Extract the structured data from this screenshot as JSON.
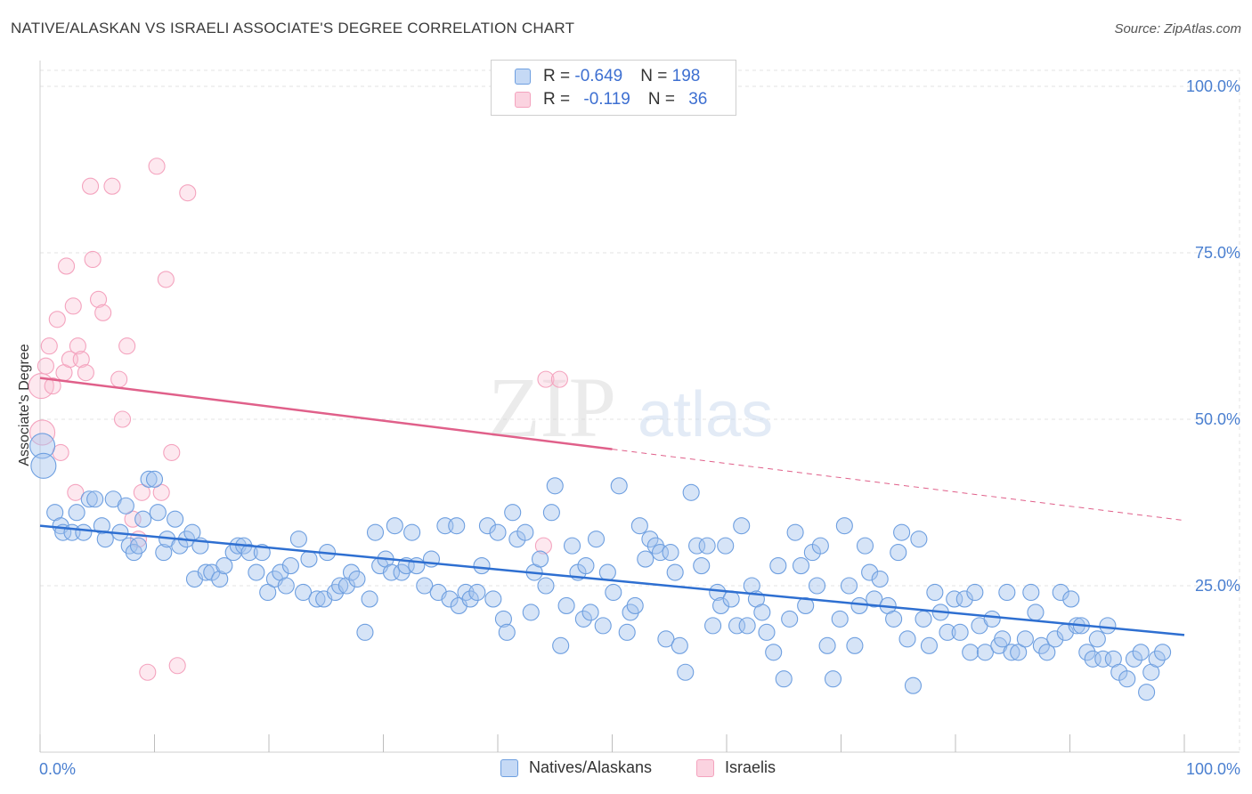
{
  "header": {
    "title": "NATIVE/ALASKAN VS ISRAELI ASSOCIATE'S DEGREE CORRELATION CHART",
    "source": "Source: ZipAtlas.com"
  },
  "watermark": {
    "zip": "ZIP",
    "atlas": "atlas"
  },
  "legend": {
    "rows": [
      {
        "r_label": "R = ",
        "r_value": "-0.649",
        "n_label": "N = ",
        "n_value": "198",
        "color": "#6e9fe0"
      },
      {
        "r_label": "R = ",
        "r_value": "-0.119",
        "n_label": "N = ",
        "n_value": "36",
        "color": "#f4a3be"
      }
    ]
  },
  "bottom_legend": [
    {
      "label": "Natives/Alaskans",
      "color": "#6e9fe0"
    },
    {
      "label": "Israelis",
      "color": "#f4a3be"
    }
  ],
  "chart_data": {
    "type": "scatter",
    "title": "NATIVE/ALASKAN VS ISRAELI ASSOCIATE'S DEGREE CORRELATION CHART",
    "xlabel": "",
    "ylabel": "Associate's Degree",
    "xlim": [
      0,
      100
    ],
    "ylim": [
      0,
      100
    ],
    "x_tick_labels": [
      "0.0%",
      "100.0%"
    ],
    "y_ticks": [
      25,
      50,
      75,
      100
    ],
    "y_tick_labels": [
      "25.0%",
      "50.0%",
      "75.0%",
      "100.0%"
    ],
    "grid": true,
    "series": [
      {
        "name": "Natives/Alaskans",
        "color": "#6e9fe0",
        "line_color": "#2e6fd1",
        "trend": {
          "x0": 0,
          "y0": 34.0,
          "x1": 100,
          "y1": 17.6,
          "dashed_from": null
        },
        "points": [
          [
            0.2,
            46
          ],
          [
            0.3,
            43
          ],
          [
            1.3,
            36
          ],
          [
            1.8,
            34
          ],
          [
            2.0,
            33
          ],
          [
            2.8,
            33
          ],
          [
            3.2,
            36
          ],
          [
            3.8,
            33
          ],
          [
            4.3,
            38
          ],
          [
            4.8,
            38
          ],
          [
            5.4,
            34
          ],
          [
            5.7,
            32
          ],
          [
            6.4,
            38
          ],
          [
            7.0,
            33
          ],
          [
            7.5,
            37
          ],
          [
            7.8,
            31
          ],
          [
            8.2,
            30
          ],
          [
            8.6,
            31
          ],
          [
            9.0,
            35
          ],
          [
            9.5,
            41
          ],
          [
            10.0,
            41
          ],
          [
            10.3,
            36
          ],
          [
            10.8,
            30
          ],
          [
            11.1,
            32
          ],
          [
            11.8,
            35
          ],
          [
            12.2,
            31
          ],
          [
            12.8,
            32
          ],
          [
            13.3,
            33
          ],
          [
            13.5,
            26
          ],
          [
            14.0,
            31
          ],
          [
            14.5,
            27
          ],
          [
            15.0,
            27
          ],
          [
            15.7,
            26
          ],
          [
            16.1,
            28
          ],
          [
            16.9,
            30
          ],
          [
            17.3,
            31
          ],
          [
            17.8,
            31
          ],
          [
            18.3,
            30
          ],
          [
            18.9,
            27
          ],
          [
            19.4,
            30
          ],
          [
            19.9,
            24
          ],
          [
            20.5,
            26
          ],
          [
            21.0,
            27
          ],
          [
            21.5,
            25
          ],
          [
            21.9,
            28
          ],
          [
            22.6,
            32
          ],
          [
            23.0,
            24
          ],
          [
            23.5,
            29
          ],
          [
            24.2,
            23
          ],
          [
            24.8,
            23
          ],
          [
            25.1,
            30
          ],
          [
            25.8,
            24
          ],
          [
            26.2,
            25
          ],
          [
            26.8,
            25
          ],
          [
            27.2,
            27
          ],
          [
            27.7,
            26
          ],
          [
            28.4,
            18
          ],
          [
            28.8,
            23
          ],
          [
            29.3,
            33
          ],
          [
            29.7,
            28
          ],
          [
            30.2,
            29
          ],
          [
            30.7,
            27
          ],
          [
            31.0,
            34
          ],
          [
            31.6,
            27
          ],
          [
            32.0,
            28
          ],
          [
            32.5,
            33
          ],
          [
            32.9,
            28
          ],
          [
            33.6,
            25
          ],
          [
            34.2,
            29
          ],
          [
            34.8,
            24
          ],
          [
            35.4,
            34
          ],
          [
            35.8,
            23
          ],
          [
            36.4,
            34
          ],
          [
            36.6,
            22
          ],
          [
            37.2,
            24
          ],
          [
            37.6,
            23
          ],
          [
            38.2,
            24
          ],
          [
            38.6,
            28
          ],
          [
            39.1,
            34
          ],
          [
            39.6,
            23
          ],
          [
            40.0,
            33
          ],
          [
            40.5,
            20
          ],
          [
            40.8,
            18
          ],
          [
            41.3,
            36
          ],
          [
            41.7,
            32
          ],
          [
            42.4,
            33
          ],
          [
            42.9,
            21
          ],
          [
            43.2,
            27
          ],
          [
            43.7,
            29
          ],
          [
            44.2,
            25
          ],
          [
            44.7,
            36
          ],
          [
            45.0,
            40
          ],
          [
            45.5,
            16
          ],
          [
            46.0,
            22
          ],
          [
            46.5,
            31
          ],
          [
            47.0,
            27
          ],
          [
            47.5,
            20
          ],
          [
            47.7,
            28
          ],
          [
            48.1,
            21
          ],
          [
            48.6,
            32
          ],
          [
            49.2,
            19
          ],
          [
            49.6,
            27
          ],
          [
            50.1,
            24
          ],
          [
            50.6,
            40
          ],
          [
            51.3,
            18
          ],
          [
            51.6,
            21
          ],
          [
            52.0,
            22
          ],
          [
            52.4,
            34
          ],
          [
            52.9,
            29
          ],
          [
            53.3,
            32
          ],
          [
            53.8,
            31
          ],
          [
            54.2,
            30
          ],
          [
            54.7,
            17
          ],
          [
            55.1,
            30
          ],
          [
            55.5,
            27
          ],
          [
            55.9,
            16
          ],
          [
            56.4,
            12
          ],
          [
            56.9,
            39
          ],
          [
            57.4,
            31
          ],
          [
            57.8,
            28
          ],
          [
            58.3,
            31
          ],
          [
            58.8,
            19
          ],
          [
            59.2,
            24
          ],
          [
            59.5,
            22
          ],
          [
            59.9,
            31
          ],
          [
            60.4,
            23
          ],
          [
            60.9,
            19
          ],
          [
            61.3,
            34
          ],
          [
            61.8,
            19
          ],
          [
            62.2,
            25
          ],
          [
            62.6,
            23
          ],
          [
            63.1,
            21
          ],
          [
            63.5,
            18
          ],
          [
            64.1,
            15
          ],
          [
            64.5,
            28
          ],
          [
            65.0,
            11
          ],
          [
            65.5,
            20
          ],
          [
            66.0,
            33
          ],
          [
            66.5,
            28
          ],
          [
            66.9,
            22
          ],
          [
            67.5,
            30
          ],
          [
            67.9,
            25
          ],
          [
            68.2,
            31
          ],
          [
            68.8,
            16
          ],
          [
            69.3,
            11
          ],
          [
            69.9,
            20
          ],
          [
            70.3,
            34
          ],
          [
            70.7,
            25
          ],
          [
            71.2,
            16
          ],
          [
            71.6,
            22
          ],
          [
            72.1,
            31
          ],
          [
            72.5,
            27
          ],
          [
            72.9,
            23
          ],
          [
            73.4,
            26
          ],
          [
            74.1,
            22
          ],
          [
            74.6,
            20
          ],
          [
            75.0,
            30
          ],
          [
            75.3,
            33
          ],
          [
            75.8,
            17
          ],
          [
            76.3,
            10
          ],
          [
            76.8,
            32
          ],
          [
            77.2,
            20
          ],
          [
            77.7,
            16
          ],
          [
            78.2,
            24
          ],
          [
            78.7,
            21
          ],
          [
            79.3,
            18
          ],
          [
            79.9,
            23
          ],
          [
            80.4,
            18
          ],
          [
            80.8,
            23
          ],
          [
            81.3,
            15
          ],
          [
            81.7,
            24
          ],
          [
            82.1,
            19
          ],
          [
            82.6,
            15
          ],
          [
            83.2,
            20
          ],
          [
            83.8,
            16
          ],
          [
            84.1,
            17
          ],
          [
            84.5,
            24
          ],
          [
            84.9,
            15
          ],
          [
            85.5,
            15
          ],
          [
            86.1,
            17
          ],
          [
            86.6,
            24
          ],
          [
            87.0,
            21
          ],
          [
            87.5,
            16
          ],
          [
            88.0,
            15
          ],
          [
            88.7,
            17
          ],
          [
            89.2,
            24
          ],
          [
            89.6,
            18
          ],
          [
            90.1,
            23
          ],
          [
            90.6,
            19
          ],
          [
            91.0,
            19
          ],
          [
            91.5,
            15
          ],
          [
            92.0,
            14
          ],
          [
            92.4,
            17
          ],
          [
            92.9,
            14
          ],
          [
            93.3,
            19
          ],
          [
            93.8,
            14
          ],
          [
            94.3,
            12
          ],
          [
            95.0,
            11
          ],
          [
            95.6,
            14
          ],
          [
            96.2,
            15
          ],
          [
            96.7,
            9
          ],
          [
            97.1,
            12
          ],
          [
            97.6,
            14
          ],
          [
            98.1,
            15
          ]
        ]
      },
      {
        "name": "Israelis",
        "color": "#f4a3be",
        "line_color": "#e0608a",
        "trend": {
          "x0": 0,
          "y0": 56.2,
          "x1": 100,
          "y1": 34.8,
          "dashed_from": 50
        },
        "points": [
          [
            0.1,
            55
          ],
          [
            0.2,
            48
          ],
          [
            0.5,
            58
          ],
          [
            0.8,
            61
          ],
          [
            1.1,
            55
          ],
          [
            1.5,
            65
          ],
          [
            1.8,
            45
          ],
          [
            2.1,
            57
          ],
          [
            2.3,
            73
          ],
          [
            2.6,
            59
          ],
          [
            2.9,
            67
          ],
          [
            3.1,
            39
          ],
          [
            3.3,
            61
          ],
          [
            3.6,
            59
          ],
          [
            4.0,
            57
          ],
          [
            4.4,
            85
          ],
          [
            4.6,
            74
          ],
          [
            5.1,
            68
          ],
          [
            5.5,
            66
          ],
          [
            6.3,
            85
          ],
          [
            6.9,
            56
          ],
          [
            7.2,
            50
          ],
          [
            7.6,
            61
          ],
          [
            8.1,
            35
          ],
          [
            8.6,
            32
          ],
          [
            8.9,
            39
          ],
          [
            9.4,
            12
          ],
          [
            10.2,
            88
          ],
          [
            10.6,
            39
          ],
          [
            11.0,
            71
          ],
          [
            11.5,
            45
          ],
          [
            12.0,
            13
          ],
          [
            12.9,
            84
          ],
          [
            44.0,
            31
          ],
          [
            44.2,
            56
          ],
          [
            45.4,
            56
          ]
        ]
      }
    ]
  }
}
